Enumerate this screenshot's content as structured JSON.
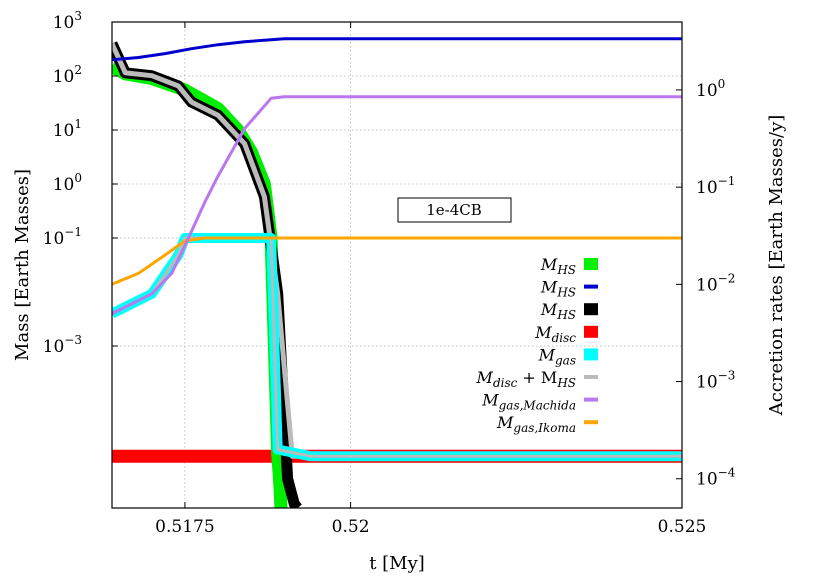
{
  "chart_data": {
    "type": "line",
    "xlabel": "t [My]",
    "ylabel_left": "Mass [Earth Masses]",
    "ylabel_right": "Accretion rates [Earth Masses/y]",
    "annotation": "1e-4CB",
    "xlim": [
      0.5164,
      0.525
    ],
    "ylim_left": [
      1e-06,
      1000
    ],
    "ylim_right": [
      5e-05,
      5
    ],
    "left_scale": "log",
    "right_scale": "log",
    "grid": true,
    "legend_position": "right-middle",
    "x_ticks": [
      {
        "value": 0.5175,
        "label": "0.5175"
      },
      {
        "value": 0.52,
        "label": "0.52"
      },
      {
        "value": 0.525,
        "label": "0.525"
      }
    ],
    "left_ticks": [
      {
        "value": 1000,
        "base": "10",
        "exp": "3"
      },
      {
        "value": 100,
        "base": "10",
        "exp": "2"
      },
      {
        "value": 10,
        "base": "10",
        "exp": "1"
      },
      {
        "value": 1,
        "base": "10",
        "exp": "0"
      },
      {
        "value": 0.1,
        "base": "10",
        "exp": "−1"
      },
      {
        "value": 0.001,
        "base": "10",
        "exp": "−3"
      }
    ],
    "right_ticks": [
      {
        "value": 1,
        "base": "10",
        "exp": "0"
      },
      {
        "value": 0.1,
        "base": "10",
        "exp": "−1"
      },
      {
        "value": 0.01,
        "base": "10",
        "exp": "−2"
      },
      {
        "value": 0.001,
        "base": "10",
        "exp": "−3"
      },
      {
        "value": 0.0001,
        "base": "10",
        "exp": "−4"
      }
    ],
    "series": [
      {
        "key": "MHS",
        "axis": "left",
        "color": "#00ee00",
        "width": 13,
        "legend_main": "M",
        "legend_sub": "HS",
        "legend_accent": "",
        "x": [
          0.5164,
          0.5166,
          0.517,
          0.5175,
          0.518,
          0.5183,
          0.5185,
          0.5187,
          0.5188,
          0.51885,
          0.5189,
          0.51893,
          0.51895
        ],
        "y": [
          150,
          110,
          90,
          55,
          25,
          10,
          4,
          1,
          0.1,
          0.001,
          1e-05,
          3e-06,
          1e-06
        ]
      },
      {
        "key": "MHS_hat",
        "axis": "left",
        "color": "#0000cc",
        "width": 3,
        "legend_main": "M",
        "legend_sub": "HS",
        "legend_accent": "^",
        "x": [
          0.5164,
          0.5168,
          0.5172,
          0.5176,
          0.518,
          0.5184,
          0.5188,
          0.519,
          0.52,
          0.525
        ],
        "y": [
          200,
          220,
          260,
          320,
          380,
          430,
          470,
          490,
          490,
          490
        ]
      },
      {
        "key": "MdotHS",
        "axis": "right",
        "color": "#000000",
        "width": 11,
        "legend_main": "M",
        "legend_sub": "HS",
        "legend_accent": "dot",
        "x": [
          0.5164,
          0.5166,
          0.517,
          0.5174,
          0.5176,
          0.518,
          0.5184,
          0.5187,
          0.5189,
          0.51905,
          0.51915,
          0.5192
        ],
        "y": [
          3,
          1.5,
          1.4,
          1.1,
          0.75,
          0.55,
          0.28,
          0.08,
          0.008,
          0.0001,
          5.5e-05,
          5e-05
        ]
      },
      {
        "key": "Mdotdisc",
        "axis": "right",
        "color": "#ff0000",
        "width": 13,
        "legend_main": "M",
        "legend_sub": "disc",
        "legend_accent": "dot",
        "x": [
          0.5164,
          0.525
        ],
        "y": [
          0.00017,
          0.00017
        ]
      },
      {
        "key": "Mdotgas",
        "axis": "right",
        "color": "#00ffff",
        "width": 10,
        "legend_main": "M",
        "legend_sub": "gas",
        "legend_accent": "dot",
        "x": [
          0.5164,
          0.517,
          0.5174,
          0.5175,
          0.5188,
          0.5189,
          0.5194,
          0.525
        ],
        "y": [
          0.005,
          0.008,
          0.02,
          0.03,
          0.03,
          0.0002,
          0.00017,
          0.00017
        ]
      },
      {
        "key": "MdotdiscHS",
        "axis": "right",
        "color": "#bbbbbb",
        "width": 5,
        "legend_main": "M",
        "legend_sub": "disc",
        "legend_accent": "dot",
        "legend_plus": "HS",
        "x": [
          0.5164,
          0.5166,
          0.517,
          0.5174,
          0.5176,
          0.518,
          0.5184,
          0.5187,
          0.5189,
          0.51912,
          0.5194,
          0.525
        ],
        "y": [
          3,
          1.5,
          1.4,
          1.1,
          0.75,
          0.55,
          0.28,
          0.08,
          0.008,
          0.00017,
          0.00017,
          0.00017
        ]
      },
      {
        "key": "MdotMachida",
        "axis": "right",
        "color": "#bb77ee",
        "width": 3,
        "legend_main": "M",
        "legend_sub": "gas,Machida",
        "legend_accent": "dot",
        "x": [
          0.5164,
          0.517,
          0.5173,
          0.5175,
          0.5178,
          0.518,
          0.5184,
          0.5188,
          0.519,
          0.525
        ],
        "y": [
          0.005,
          0.008,
          0.013,
          0.025,
          0.07,
          0.13,
          0.4,
          0.82,
          0.85,
          0.85
        ]
      },
      {
        "key": "MdotIkoma",
        "axis": "right",
        "color": "#ffa500",
        "width": 3,
        "legend_main": "M",
        "legend_sub": "gas,Ikoma",
        "legend_accent": "dot",
        "x": [
          0.5164,
          0.5168,
          0.5172,
          0.5175,
          0.5178,
          0.525
        ],
        "y": [
          0.01,
          0.013,
          0.02,
          0.028,
          0.03,
          0.03
        ]
      }
    ]
  }
}
